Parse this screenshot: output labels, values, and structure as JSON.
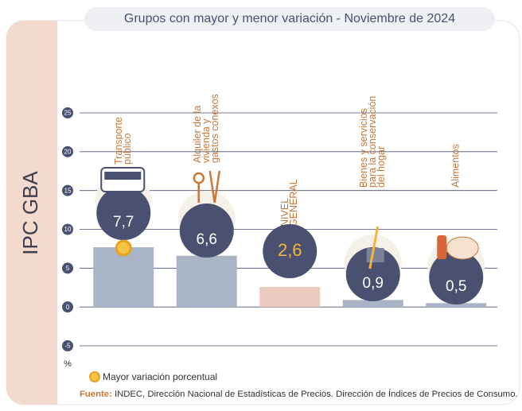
{
  "chart_data": {
    "type": "bar",
    "panel_label": "IPC GBA",
    "title": "Grupos con mayor y menor variación - Noviembre de 2024",
    "categories": [
      "Transporte\npúblico",
      "Alquiler de la\nvivienda y\ngastos conexos",
      "NIVEL\nGENERAL",
      "Bienes y servicios\npara la conservación\ndel hogar",
      "Alimentos"
    ],
    "values": [
      7.7,
      6.6,
      2.6,
      0.9,
      0.5
    ],
    "value_labels": [
      "7,7",
      "6,6",
      "2,6",
      "0,9",
      "0,5"
    ],
    "colors": [
      "#a9b4c6",
      "#a9b4c6",
      "#ecccc0",
      "#a9b4c6",
      "#a9b4c6"
    ],
    "ylim": [
      -5,
      25
    ],
    "yticks": [
      -5,
      0,
      5,
      10,
      15,
      20,
      25
    ],
    "grid": true,
    "y_unit": "%",
    "highlight": 0,
    "legend": "Mayor variación porcentual",
    "source_label": "Fuente:",
    "source_text": "INDEC, Dirección Nacional de Estadísticas de Precios. Dirección de Índices de Precios de Consumo."
  }
}
